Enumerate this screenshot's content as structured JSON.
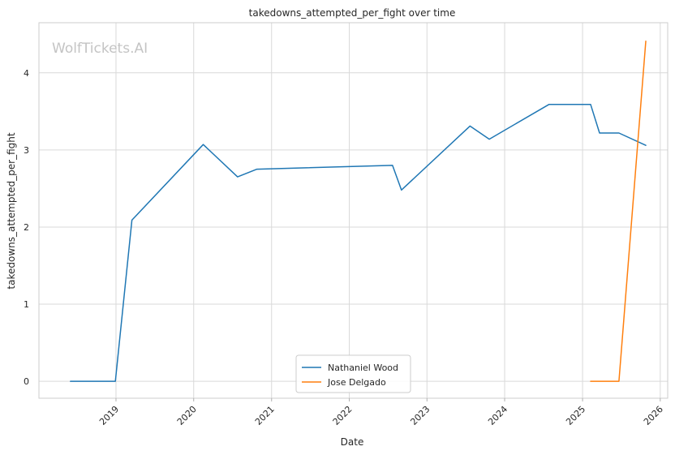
{
  "chart_data": {
    "type": "line",
    "title": "takedowns_attempted_per_fight over time",
    "xlabel": "Date",
    "ylabel": "takedowns_attempted_per_fight",
    "watermark": "WolfTickets.AI",
    "xlim": [
      "2018-01-04",
      "2026-02-05"
    ],
    "ylim": [
      -0.22,
      4.65
    ],
    "x_ticks": [
      {
        "date": "2019-01-01",
        "label": "2019"
      },
      {
        "date": "2020-01-01",
        "label": "2020"
      },
      {
        "date": "2021-01-01",
        "label": "2021"
      },
      {
        "date": "2022-01-01",
        "label": "2022"
      },
      {
        "date": "2023-01-01",
        "label": "2023"
      },
      {
        "date": "2024-01-01",
        "label": "2024"
      },
      {
        "date": "2025-01-01",
        "label": "2025"
      },
      {
        "date": "2026-01-01",
        "label": "2026"
      }
    ],
    "y_ticks": [
      0,
      1,
      2,
      3,
      4
    ],
    "grid": true,
    "legend_position": "bottom-center",
    "series": [
      {
        "name": "Nathaniel Wood",
        "color": "#1f77b4",
        "points": [
          {
            "x": "2018-06-01",
            "y": 0.0
          },
          {
            "x": "2018-12-29",
            "y": 0.0
          },
          {
            "x": "2019-03-17",
            "y": 2.09
          },
          {
            "x": "2020-02-15",
            "y": 3.07
          },
          {
            "x": "2020-07-25",
            "y": 2.65
          },
          {
            "x": "2020-10-24",
            "y": 2.75
          },
          {
            "x": "2022-07-23",
            "y": 2.8
          },
          {
            "x": "2022-09-03",
            "y": 2.48
          },
          {
            "x": "2023-07-22",
            "y": 3.31
          },
          {
            "x": "2023-10-21",
            "y": 3.14
          },
          {
            "x": "2024-07-27",
            "y": 3.59
          },
          {
            "x": "2025-02-08",
            "y": 3.59
          },
          {
            "x": "2025-03-22",
            "y": 3.22
          },
          {
            "x": "2025-06-21",
            "y": 3.22
          },
          {
            "x": "2025-10-25",
            "y": 3.06
          }
        ]
      },
      {
        "name": "Jose Delgado",
        "color": "#ff7f0e",
        "points": [
          {
            "x": "2025-02-08",
            "y": 0.0
          },
          {
            "x": "2025-06-21",
            "y": 0.0
          },
          {
            "x": "2025-10-25",
            "y": 4.41
          }
        ]
      }
    ]
  }
}
